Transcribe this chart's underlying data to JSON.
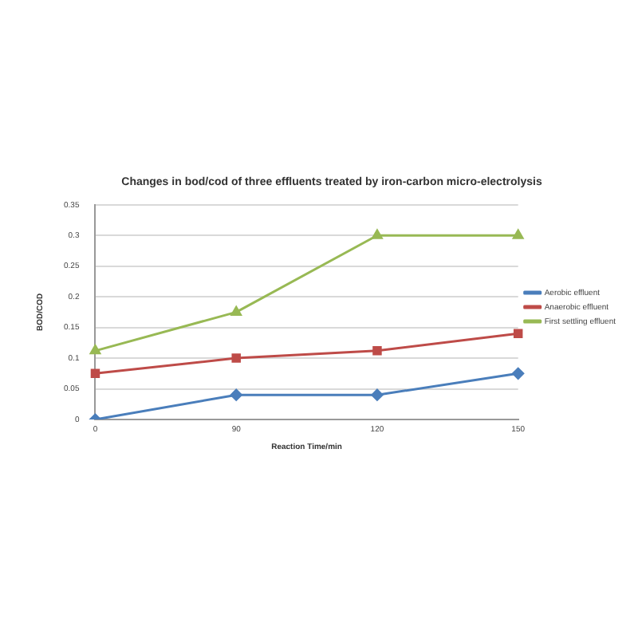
{
  "chart_data": {
    "type": "line",
    "title": "Changes in bod/cod of three effluents treated by iron-carbon micro-electrolysis",
    "xlabel": "Reaction Time/min",
    "ylabel": "BOD/COD",
    "categories": [
      "0",
      "90",
      "120",
      "150"
    ],
    "series": [
      {
        "name": "Aerobic effluent",
        "color": "#4a7ebb",
        "marker": "diamond",
        "values": [
          0,
          0.04,
          0.04,
          0.075
        ]
      },
      {
        "name": "Anaerobic effluent",
        "color": "#be4b48",
        "marker": "square",
        "values": [
          0.075,
          0.1,
          0.112,
          0.14
        ]
      },
      {
        "name": "First settling effluent",
        "color": "#98b954",
        "marker": "triangle",
        "values": [
          0.112,
          0.175,
          0.3,
          0.3
        ]
      }
    ],
    "ylim": [
      0,
      0.35
    ],
    "yticks": [
      0,
      0.05,
      0.1,
      0.15,
      0.2,
      0.25,
      0.3,
      0.35
    ],
    "grid": "y",
    "legend": "right"
  }
}
